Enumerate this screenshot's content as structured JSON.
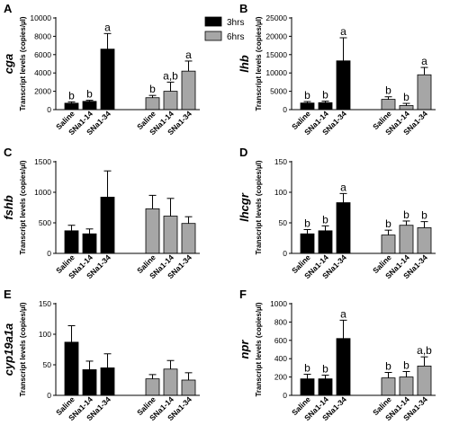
{
  "colors": {
    "series_3hrs": "#000000",
    "series_6hrs": "#a6a6a6"
  },
  "legend": {
    "items": [
      {
        "label": "3hrs",
        "color": "#000000"
      },
      {
        "label": "6hrs",
        "color": "#a6a6a6"
      }
    ],
    "placement": "top-center"
  },
  "chart_data": [
    {
      "panel": "A",
      "gene": "cga",
      "type": "bar",
      "ylabel": "Transcript levels (copies/µl)",
      "ylim": [
        0,
        10000
      ],
      "yticks": [
        0,
        2000,
        4000,
        6000,
        8000,
        10000
      ],
      "categories": [
        "Saline",
        "SNa1-14",
        "SNa1-34"
      ],
      "series": [
        {
          "name": "3hrs",
          "values": [
            700,
            900,
            6600
          ],
          "errors": [
            150,
            120,
            1700
          ],
          "sig": [
            "b",
            "b",
            "a"
          ]
        },
        {
          "name": "6hrs",
          "values": [
            1300,
            2000,
            4200
          ],
          "errors": [
            250,
            1000,
            1100
          ],
          "sig": [
            "b",
            "a,b",
            "a"
          ]
        }
      ]
    },
    {
      "panel": "B",
      "gene": "lhb",
      "type": "bar",
      "ylabel": "Transcript levels (copies/µl)",
      "ylim": [
        0,
        25000
      ],
      "yticks": [
        0,
        5000,
        10000,
        15000,
        20000,
        25000
      ],
      "categories": [
        "Saline",
        "SNa1-14",
        "SNa1-34"
      ],
      "series": [
        {
          "name": "3hrs",
          "values": [
            1800,
            1900,
            13300
          ],
          "errors": [
            400,
            400,
            6300
          ],
          "sig": [
            "b",
            "b",
            "a"
          ]
        },
        {
          "name": "6hrs",
          "values": [
            2800,
            1100,
            9500
          ],
          "errors": [
            700,
            600,
            2000
          ],
          "sig": [
            "b",
            "b",
            "a"
          ]
        }
      ]
    },
    {
      "panel": "C",
      "gene": "fshb",
      "type": "bar",
      "ylabel": "Transcript levels (copies/µl)",
      "ylim": [
        0,
        1500
      ],
      "yticks": [
        0,
        500,
        1000,
        1500
      ],
      "categories": [
        "Saline",
        "SNa1-14",
        "SNa1-34"
      ],
      "series": [
        {
          "name": "3hrs",
          "values": [
            370,
            320,
            920
          ],
          "errors": [
            90,
            80,
            430
          ],
          "sig": [
            "",
            "",
            ""
          ]
        },
        {
          "name": "6hrs",
          "values": [
            730,
            610,
            490
          ],
          "errors": [
            220,
            290,
            110
          ],
          "sig": [
            "",
            "",
            ""
          ]
        }
      ]
    },
    {
      "panel": "D",
      "gene": "lhcgr",
      "type": "bar",
      "ylabel": "Transcript levels (copies/µl)",
      "ylim": [
        0,
        150
      ],
      "yticks": [
        0,
        50,
        100,
        150
      ],
      "categories": [
        "Saline",
        "SNa1-14",
        "SNa1-34"
      ],
      "series": [
        {
          "name": "3hrs",
          "values": [
            32,
            37,
            83
          ],
          "errors": [
            7,
            8,
            15
          ],
          "sig": [
            "b",
            "b",
            "a"
          ]
        },
        {
          "name": "6hrs",
          "values": [
            30,
            46,
            42
          ],
          "errors": [
            8,
            7,
            10
          ],
          "sig": [
            "b",
            "b",
            "b"
          ]
        }
      ]
    },
    {
      "panel": "E",
      "gene": "cyp19a1a",
      "type": "bar",
      "ylabel": "Transcript levels (copies/µl)",
      "ylim": [
        0,
        150
      ],
      "yticks": [
        0,
        50,
        100,
        150
      ],
      "categories": [
        "Saline",
        "SNa1-14",
        "SNa1-34"
      ],
      "series": [
        {
          "name": "3hrs",
          "values": [
            87,
            42,
            45
          ],
          "errors": [
            27,
            14,
            23
          ],
          "sig": [
            "",
            "",
            ""
          ]
        },
        {
          "name": "6hrs",
          "values": [
            27,
            43,
            25
          ],
          "errors": [
            7,
            14,
            12
          ],
          "sig": [
            "",
            "",
            ""
          ]
        }
      ]
    },
    {
      "panel": "F",
      "gene": "npr",
      "type": "bar",
      "ylabel": "Transcript levels (copies/µl)",
      "ylim": [
        0,
        1000
      ],
      "yticks": [
        0,
        200,
        400,
        600,
        800,
        1000
      ],
      "categories": [
        "Saline",
        "SNa1-14",
        "SNa1-34"
      ],
      "series": [
        {
          "name": "3hrs",
          "values": [
            180,
            180,
            620
          ],
          "errors": [
            50,
            40,
            200
          ],
          "sig": [
            "b",
            "b",
            "a"
          ]
        },
        {
          "name": "6hrs",
          "values": [
            190,
            200,
            320
          ],
          "errors": [
            60,
            60,
            100
          ],
          "sig": [
            "b",
            "b",
            "a,b"
          ]
        }
      ]
    }
  ]
}
